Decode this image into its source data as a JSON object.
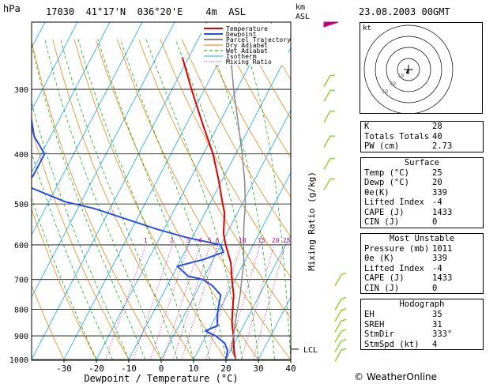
{
  "header": {
    "pressure_unit": "hPa",
    "station": "17030",
    "lat": "41°17'N",
    "lon": "036°20'E",
    "elevation": "4m",
    "asl": "ASL",
    "km_label": "km",
    "km_asl": "ASL",
    "datetime": "23.08.2003 00GMT"
  },
  "chart_data": {
    "type": "line",
    "xlabel": "Dewpoint / Temperature (°C)",
    "ylabel": "Mixing Ratio (g/kg)",
    "x_ticks": [
      "-30",
      "-20",
      "-10",
      "0",
      "10",
      "20",
      "30",
      "40"
    ],
    "x_range": [
      -40,
      40
    ],
    "y_ticks": [
      "300",
      "400",
      "500",
      "600",
      "700",
      "800",
      "900",
      "1000"
    ],
    "y_range_hpa": [
      1000,
      250
    ],
    "lcl_label": "LCL",
    "lcl_pressure": 955,
    "mixing_ratio_labels": [
      "1",
      "2",
      "3",
      "4",
      "5",
      "6",
      "10",
      "15",
      "20",
      "25"
    ],
    "legend": [
      "Temperature",
      "Dewpoint",
      "Parcel Trajectory",
      "Dry Adiabat",
      "Wet Adiabat",
      "Isotherm",
      "Mixing Ratio"
    ],
    "series": [
      {
        "name": "Temperature",
        "color": "#e00000",
        "points": [
          [
            1000,
            23
          ],
          [
            960,
            21
          ],
          [
            900,
            18.5
          ],
          [
            850,
            16
          ],
          [
            800,
            14
          ],
          [
            750,
            12
          ],
          [
            700,
            9
          ],
          [
            650,
            6
          ],
          [
            600,
            1.5
          ],
          [
            570,
            -1
          ],
          [
            520,
            -4
          ],
          [
            500,
            -6
          ],
          [
            450,
            -11
          ],
          [
            400,
            -17
          ],
          [
            350,
            -25
          ],
          [
            300,
            -34
          ],
          [
            260,
            -42
          ]
        ]
      },
      {
        "name": "Dewpoint",
        "color": "#2a4de8",
        "points": [
          [
            1000,
            20
          ],
          [
            960,
            19
          ],
          [
            930,
            17
          ],
          [
            900,
            13
          ],
          [
            880,
            9
          ],
          [
            860,
            12
          ],
          [
            840,
            11
          ],
          [
            800,
            9.5
          ],
          [
            750,
            8
          ],
          [
            720,
            4
          ],
          [
            700,
            0
          ],
          [
            690,
            -5
          ],
          [
            660,
            -10
          ],
          [
            640,
            -3
          ],
          [
            620,
            2
          ],
          [
            600,
            0
          ],
          [
            580,
            -12
          ],
          [
            560,
            -22
          ],
          [
            510,
            -45
          ],
          [
            495,
            -55
          ],
          [
            460,
            -70
          ],
          [
            440,
            -69
          ],
          [
            400,
            -69
          ],
          [
            370,
            -75
          ],
          [
            300,
            -85
          ]
        ]
      },
      {
        "name": "Parcel Trajectory",
        "color": "#888888",
        "points": [
          [
            1000,
            23
          ],
          [
            955,
            20
          ],
          [
            900,
            18.5
          ],
          [
            850,
            17
          ],
          [
            800,
            15.5
          ],
          [
            750,
            14
          ],
          [
            700,
            12
          ],
          [
            650,
            10
          ],
          [
            600,
            7
          ],
          [
            550,
            4
          ],
          [
            500,
            1
          ],
          [
            450,
            -3
          ],
          [
            400,
            -8
          ],
          [
            350,
            -14
          ],
          [
            300,
            -21
          ],
          [
            260,
            -27
          ]
        ]
      }
    ]
  },
  "hodograph": {
    "label": "kt",
    "ring_labels": [
      "10",
      "20",
      "30"
    ],
    "wind_dir_deg": 333,
    "wind_speed_kt": 4
  },
  "tables": [
    {
      "title": null,
      "rows": [
        {
          "label": "K",
          "value": "28"
        },
        {
          "label": "Totals Totals",
          "value": "40"
        },
        {
          "label": "PW (cm)",
          "value": "2.73"
        }
      ]
    },
    {
      "title": "Surface",
      "rows": [
        {
          "label": "Temp (°C)",
          "value": "25"
        },
        {
          "label": "Dewp (°C)",
          "value": "20"
        },
        {
          "label": "θe(K)",
          "value": "339"
        },
        {
          "label": "Lifted Index",
          "value": "-4"
        },
        {
          "label": "CAPE (J)",
          "value": "1433"
        },
        {
          "label": "CIN (J)",
          "value": "0"
        }
      ]
    },
    {
      "title": "Most Unstable",
      "rows": [
        {
          "label": "Pressure (mb)",
          "value": "1011"
        },
        {
          "label": "θe (K)",
          "value": "339"
        },
        {
          "label": "Lifted Index",
          "value": "-4"
        },
        {
          "label": "CAPE (J)",
          "value": "1433"
        },
        {
          "label": "CIN (J)",
          "value": "0"
        }
      ]
    },
    {
      "title": "Hodograph",
      "rows": [
        {
          "label": "EH",
          "value": "35"
        },
        {
          "label": "SREH",
          "value": "31"
        },
        {
          "label": "StmDir",
          "value": "333°"
        },
        {
          "label": "StmSpd (kt)",
          "value": "4"
        }
      ]
    }
  ],
  "copyright": "© WeatherOnline",
  "colors": {
    "temperature": "#e00000",
    "dewpoint": "#2a4de8",
    "parcel": "#888888",
    "dry_adiabat": "#e07b00",
    "wet_adiabat": "#00a000",
    "isotherm": "#18a7e8",
    "mixing_ratio": "#d0008a",
    "wind_barb": "#9acd32"
  }
}
